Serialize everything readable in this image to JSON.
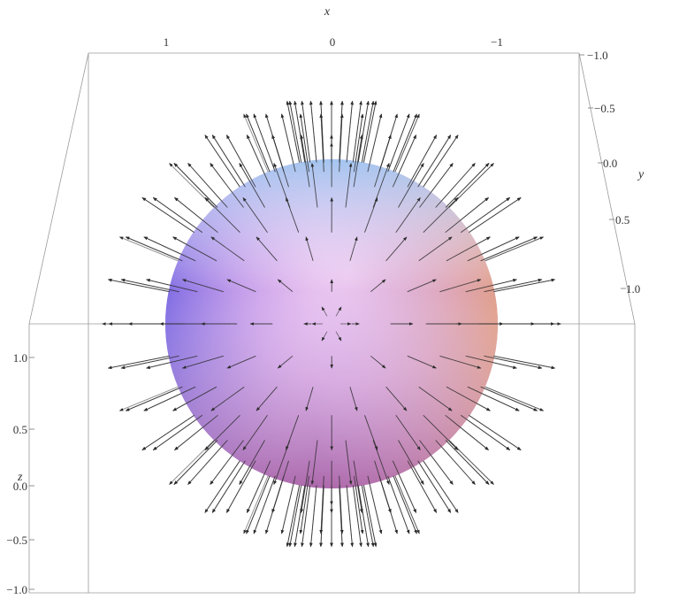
{
  "chart_data": {
    "type": "vector-field-3d",
    "surface": "sphere",
    "vector_field": "radial (outward normal)",
    "axes": {
      "x": {
        "label": "x",
        "ticks": [
          "1",
          "0",
          "−1"
        ]
      },
      "y": {
        "label": "y",
        "ticks": [
          "−1.0",
          "−0.5",
          "0.0",
          "0.5",
          "1.0"
        ]
      },
      "z": {
        "label": "z",
        "ticks": [
          "1.0",
          "0.5",
          "0.0",
          "−0.5",
          "−1.0"
        ]
      }
    },
    "colors": {
      "arrow": "#2b2b2b",
      "sphere_light": "#9ec8f0",
      "sphere_mid": "#c9a6ec",
      "sphere_left": "#6e62e6",
      "sphere_right": "#e6a07a",
      "sphere_bottom": "#c26a8e",
      "box": "#9a9a9a"
    }
  }
}
